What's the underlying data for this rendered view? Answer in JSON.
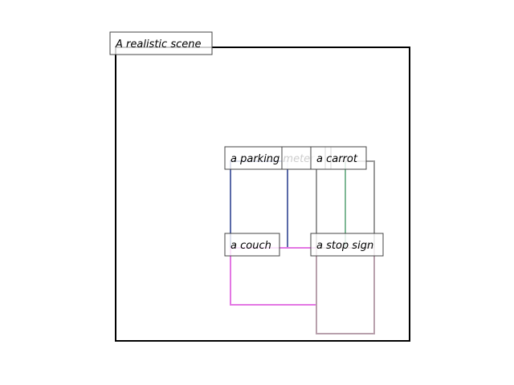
{
  "scene": {
    "label": "A realistic scene",
    "border_color": "#000000"
  },
  "objects": [
    {
      "id": "parking-meter",
      "label": "a parking meter",
      "color": "#5a6aa8"
    },
    {
      "id": "couch",
      "label": "a couch",
      "color": "#e377e3"
    },
    {
      "id": "stop-sign",
      "label": "a stop sign",
      "color": "#b8a0ac"
    },
    {
      "id": "carrot",
      "label": "a carrot",
      "color": "#7fb895"
    },
    {
      "id": "gray-box",
      "label": "",
      "color": "#999999"
    }
  ]
}
